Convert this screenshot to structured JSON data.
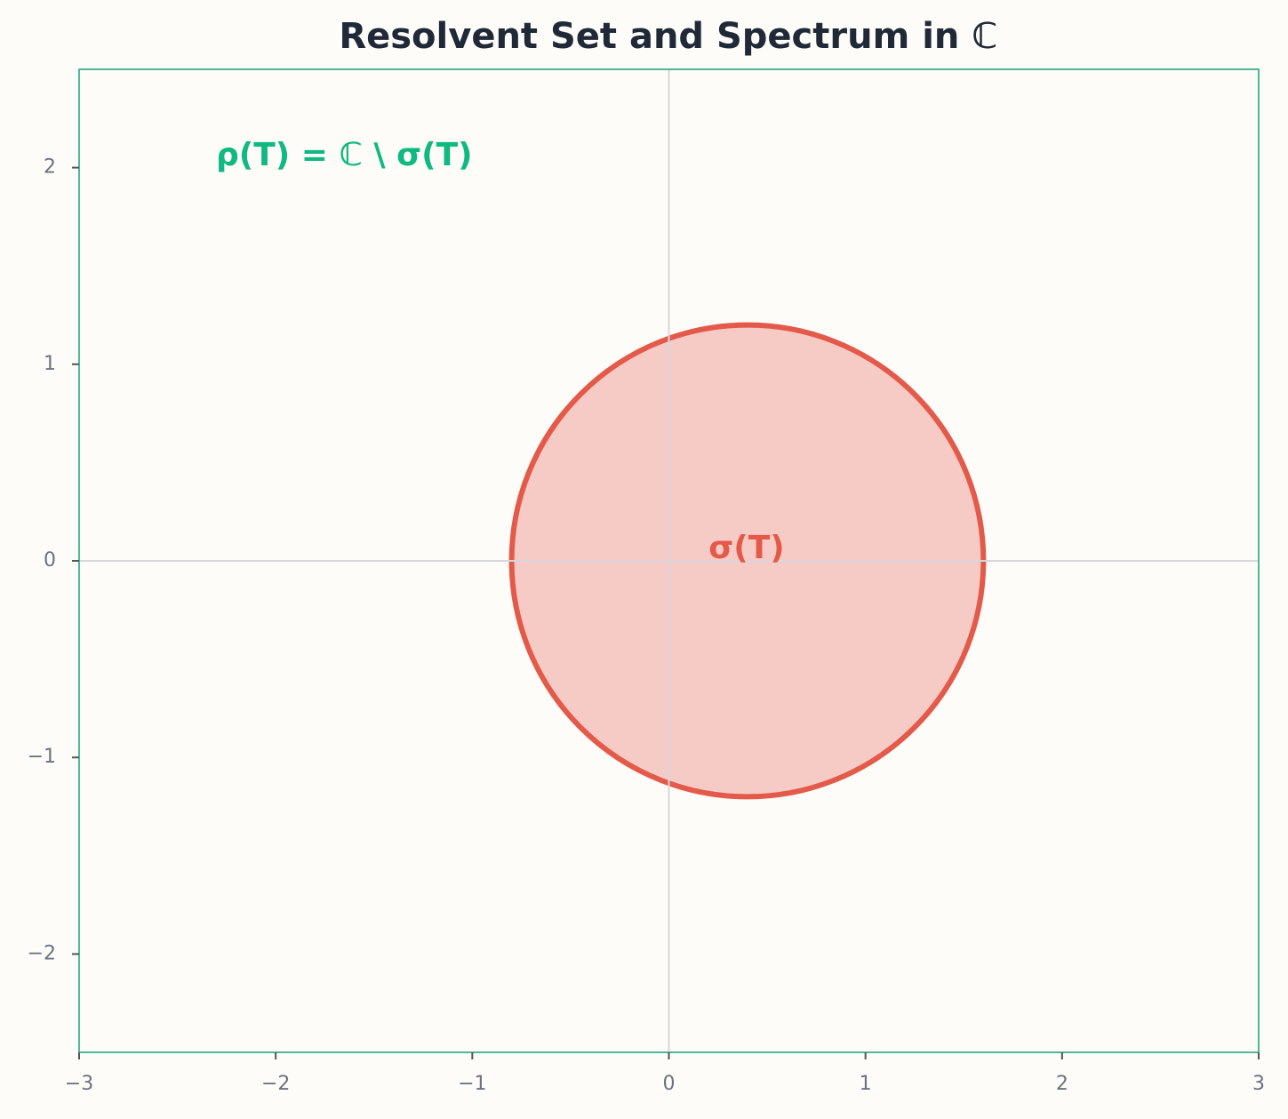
{
  "chart_data": {
    "type": "region",
    "title": "Resolvent Set and Spectrum in ℂ",
    "annotations": [
      "ρ(T) = ℂ \\ σ(T)",
      "σ(T)"
    ],
    "circle": {
      "center_x": 0.4,
      "center_y": 0,
      "radius": 1.2,
      "color": "#e45a4a",
      "fill": "#f7cbc5"
    },
    "xlim": [
      -3,
      3
    ],
    "ylim": [
      -2.5,
      2.5
    ],
    "xticks": [
      {
        "value": -3,
        "label": "−3"
      },
      {
        "value": -2,
        "label": "−2"
      },
      {
        "value": -1,
        "label": "−1"
      },
      0,
      1,
      2,
      3
    ],
    "yticks": [
      {
        "value": -2,
        "label": "−2"
      },
      {
        "value": -1,
        "label": "−1"
      },
      0,
      1,
      2
    ],
    "axes_lines": true
  }
}
